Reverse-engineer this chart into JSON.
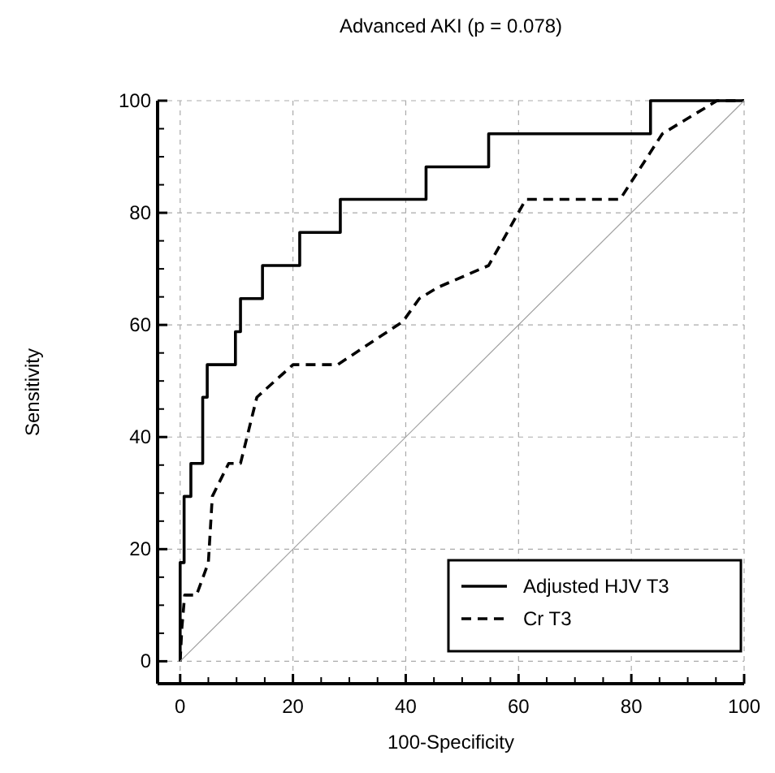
{
  "chart_data": {
    "type": "line",
    "title": "Advanced AKI (p = 0.078)",
    "xlabel": "100-Specificity",
    "ylabel": "Sensitivity",
    "xlim": [
      -4,
      100
    ],
    "ylim": [
      -4,
      100
    ],
    "xticks": [
      0,
      {
        "value": 5,
        "label": null
      },
      {
        "value": 10,
        "label": null
      },
      {
        "value": 15,
        "label": null
      },
      20,
      {
        "value": 25,
        "label": null
      },
      {
        "value": 30,
        "label": null
      },
      {
        "value": 35,
        "label": null
      },
      40,
      {
        "value": 45,
        "label": null
      },
      {
        "value": 50,
        "label": null
      },
      {
        "value": 55,
        "label": null
      },
      60,
      {
        "value": 65,
        "label": null
      },
      {
        "value": 70,
        "label": null
      },
      {
        "value": 75,
        "label": null
      },
      80,
      {
        "value": 85,
        "label": null
      },
      {
        "value": 90,
        "label": null
      },
      {
        "value": 95,
        "label": null
      },
      100
    ],
    "yticks": [
      0,
      {
        "value": 5,
        "label": null
      },
      {
        "value": 10,
        "label": null
      },
      {
        "value": 15,
        "label": null
      },
      20,
      {
        "value": 25,
        "label": null
      },
      {
        "value": 30,
        "label": null
      },
      {
        "value": 35,
        "label": null
      },
      40,
      {
        "value": 45,
        "label": null
      },
      {
        "value": 50,
        "label": null
      },
      {
        "value": 55,
        "label": null
      },
      60,
      {
        "value": 65,
        "label": null
      },
      {
        "value": 70,
        "label": null
      },
      {
        "value": 75,
        "label": null
      },
      80,
      {
        "value": 85,
        "label": null
      },
      {
        "value": 90,
        "label": null
      },
      {
        "value": 95,
        "label": null
      },
      100
    ],
    "grid": true,
    "legend": "bottom right",
    "marker": "none",
    "series": [
      {
        "name": "Adjusted HJV T3",
        "color": "#000000",
        "line_style": "solid",
        "x": [
          0,
          0,
          0.7,
          0.7,
          1.9,
          1.9,
          4.0,
          4.0,
          4.8,
          4.8,
          9.8,
          9.8,
          10.7,
          10.7,
          14.6,
          14.6,
          21.2,
          21.2,
          28.4,
          28.4,
          43.6,
          43.6,
          54.7,
          54.7,
          83.4,
          83.4,
          100
        ],
        "values": [
          0,
          17.6,
          17.6,
          29.4,
          29.4,
          35.3,
          35.3,
          47.1,
          47.1,
          52.9,
          52.9,
          58.8,
          58.8,
          64.7,
          64.7,
          70.6,
          70.6,
          76.5,
          76.5,
          82.4,
          82.4,
          88.2,
          88.2,
          94.1,
          94.1,
          100,
          100
        ]
      },
      {
        "name": "Cr T3",
        "color": "#000000",
        "line_style": "dashed",
        "x": [
          0,
          0.3,
          0.8,
          2.9,
          5.0,
          5.7,
          8.6,
          10.7,
          13.6,
          20,
          27.9,
          39.5,
          42.4,
          45.7,
          54.7,
          61.3,
          78,
          85.5,
          95.2,
          100
        ],
        "values": [
          0,
          5.9,
          11.8,
          11.8,
          17.6,
          29.4,
          35.3,
          35.3,
          47.1,
          52.9,
          52.9,
          60.6,
          64.7,
          66.7,
          70.6,
          82.4,
          82.4,
          94.1,
          100,
          100
        ]
      },
      {
        "color": "#a0a0a0",
        "line_style": "solid",
        "x": [
          0,
          100
        ],
        "values": [
          0,
          100
        ]
      }
    ]
  }
}
